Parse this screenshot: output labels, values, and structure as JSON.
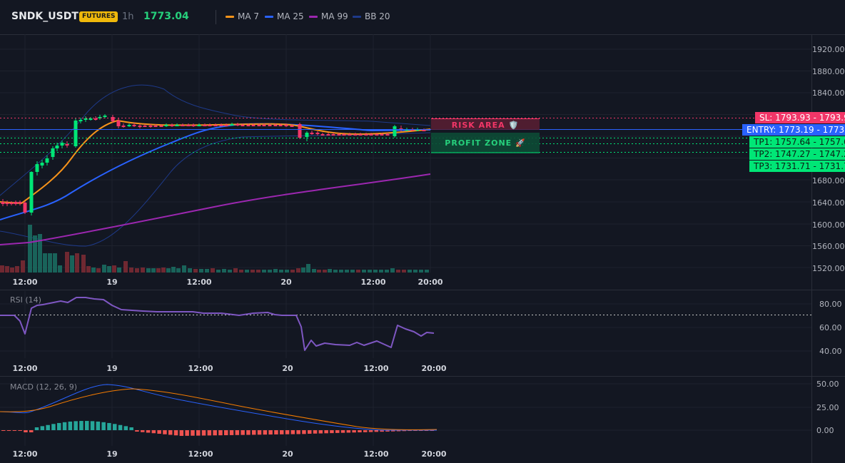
{
  "header": {
    "symbol": "SNDK_USDT",
    "badge": "FUTURES",
    "timeframe": "1h",
    "last_price": "1773.04",
    "legend": [
      {
        "label": "MA 7",
        "color": "#f7931a"
      },
      {
        "label": "MA 25",
        "color": "#2962ff"
      },
      {
        "label": "MA 99",
        "color": "#9c27b0"
      },
      {
        "label": "BB 20",
        "color": "#1e3a8a"
      }
    ]
  },
  "main_chart": {
    "price_axis": [
      "1920.00",
      "1880.00",
      "1840.00",
      "1800.00",
      "1760.00",
      "1720.00",
      "1680.00",
      "1640.00",
      "1600.00",
      "1560.00",
      "1520.00"
    ],
    "time_axis": [
      "12:00",
      "19",
      "12:00",
      "20",
      "12:00",
      "20:00"
    ],
    "risk_area_label": "RISK AREA 🛡️",
    "profit_zone_label": "PROFIT ZONE 🚀",
    "levels": [
      {
        "label": "SL: 1793.93",
        "value": "1793.93",
        "color": "#f23668"
      },
      {
        "label": "ENTRY: 1773.19",
        "value": "1773.19",
        "color": "#2962ff"
      },
      {
        "label": "TP1: 1757.64",
        "value": "1757.64",
        "color": "#00e676"
      },
      {
        "label": "TP2: 1747.27",
        "value": "1747.27",
        "color": "#00e676"
      },
      {
        "label": "TP3: 1731.71",
        "value": "1731.71",
        "color": "#00e676"
      }
    ]
  },
  "rsi_panel": {
    "title": "RSI (14)",
    "axis": [
      "80.00",
      "60.00",
      "40.00"
    ],
    "time_axis": [
      "12:00",
      "19",
      "12:00",
      "20",
      "12:00",
      "20:00"
    ]
  },
  "macd_panel": {
    "title": "MACD (12, 26, 9)",
    "axis": [
      "50.00",
      "25.00",
      "0.00"
    ],
    "time_axis": [
      "12:00",
      "19",
      "12:00",
      "20",
      "12:00",
      "20:00"
    ]
  },
  "colors": {
    "up": "#26a69a",
    "down": "#ef5350",
    "candle_up": "#00e676",
    "candle_down": "#f23668",
    "rsi": "#7e57c2",
    "macd": "#2962ff",
    "signal": "#f57c00"
  }
}
